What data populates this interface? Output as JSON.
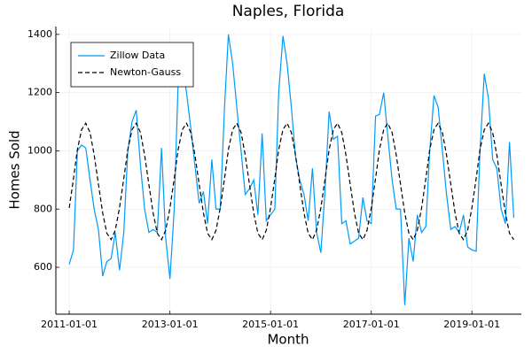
{
  "chart_data": {
    "type": "line",
    "title": "Naples, Florida",
    "x_label": "Month",
    "y_label": "Homes Sold",
    "x": [
      "2011-01-01",
      "2011-02-01",
      "2011-03-01",
      "2011-04-01",
      "2011-05-01",
      "2011-06-01",
      "2011-07-01",
      "2011-08-01",
      "2011-09-01",
      "2011-10-01",
      "2011-11-01",
      "2011-12-01",
      "2012-01-01",
      "2012-02-01",
      "2012-03-01",
      "2012-04-01",
      "2012-05-01",
      "2012-06-01",
      "2012-07-01",
      "2012-08-01",
      "2012-09-01",
      "2012-10-01",
      "2012-11-01",
      "2012-12-01",
      "2013-01-01",
      "2013-02-01",
      "2013-03-01",
      "2013-04-01",
      "2013-05-01",
      "2013-06-01",
      "2013-07-01",
      "2013-08-01",
      "2013-09-01",
      "2013-10-01",
      "2013-11-01",
      "2013-12-01",
      "2014-01-01",
      "2014-02-01",
      "2014-03-01",
      "2014-04-01",
      "2014-05-01",
      "2014-06-01",
      "2014-07-01",
      "2014-08-01",
      "2014-09-01",
      "2014-10-01",
      "2014-11-01",
      "2014-12-01",
      "2015-01-01",
      "2015-02-01",
      "2015-03-01",
      "2015-04-01",
      "2015-05-01",
      "2015-06-01",
      "2015-07-01",
      "2015-08-01",
      "2015-09-01",
      "2015-10-01",
      "2015-11-01",
      "2015-12-01",
      "2016-01-01",
      "2016-02-01",
      "2016-03-01",
      "2016-04-01",
      "2016-05-01",
      "2016-06-01",
      "2016-07-01",
      "2016-08-01",
      "2016-09-01",
      "2016-10-01",
      "2016-11-01",
      "2016-12-01",
      "2017-01-01",
      "2017-02-01",
      "2017-03-01",
      "2017-04-01",
      "2017-05-01",
      "2017-06-01",
      "2017-07-01",
      "2017-08-01",
      "2017-09-01",
      "2017-10-01",
      "2017-11-01",
      "2017-12-01",
      "2018-01-01",
      "2018-02-01",
      "2018-03-01",
      "2018-04-01",
      "2018-05-01",
      "2018-06-01",
      "2018-07-01",
      "2018-08-01",
      "2018-09-01",
      "2018-10-01",
      "2018-11-01",
      "2018-12-01",
      "2019-01-01",
      "2019-02-01",
      "2019-03-01",
      "2019-04-01",
      "2019-05-01",
      "2019-06-01",
      "2019-07-01",
      "2019-08-01",
      "2019-09-01",
      "2019-10-01",
      "2019-11-01"
    ],
    "series": [
      {
        "name": "Zillow Data",
        "color": "#009af9",
        "dash": false,
        "values": [
          610,
          660,
          1000,
          1020,
          1010,
          900,
          800,
          730,
          570,
          620,
          630,
          720,
          590,
          720,
          1000,
          1100,
          1140,
          950,
          800,
          720,
          730,
          720,
          1010,
          700,
          560,
          800,
          1230,
          1300,
          1200,
          1080,
          950,
          820,
          860,
          750,
          970,
          800,
          800,
          1150,
          1400,
          1300,
          1150,
          1000,
          850,
          870,
          900,
          780,
          1060,
          760,
          780,
          800,
          1200,
          1395,
          1300,
          1150,
          980,
          900,
          850,
          760,
          940,
          720,
          650,
          870,
          1135,
          1040,
          1050,
          750,
          760,
          680,
          690,
          700,
          840,
          760,
          750,
          1120,
          1125,
          1200,
          1050,
          900,
          800,
          800,
          470,
          700,
          620,
          780,
          720,
          740,
          1000,
          1190,
          1150,
          1000,
          850,
          730,
          740,
          720,
          780,
          670,
          660,
          655,
          1000,
          1265,
          1180,
          970,
          940,
          800,
          750,
          1030,
          770
        ]
      },
      {
        "name": "Newton-Gauss",
        "color": "#000000",
        "dash": true,
        "values": [
          804,
          905,
          1004,
          1073,
          1095,
          1063,
          986,
          885,
          786,
          717,
          695,
          727,
          804,
          905,
          1004,
          1073,
          1095,
          1063,
          986,
          885,
          786,
          717,
          695,
          727,
          804,
          905,
          1004,
          1073,
          1095,
          1063,
          986,
          885,
          786,
          717,
          695,
          727,
          804,
          905,
          1004,
          1073,
          1095,
          1063,
          986,
          885,
          786,
          717,
          695,
          727,
          804,
          905,
          1004,
          1073,
          1095,
          1063,
          986,
          885,
          786,
          717,
          695,
          727,
          804,
          905,
          1004,
          1073,
          1095,
          1063,
          986,
          885,
          786,
          717,
          695,
          727,
          804,
          905,
          1004,
          1073,
          1095,
          1063,
          986,
          885,
          786,
          717,
          695,
          727,
          804,
          905,
          1004,
          1073,
          1095,
          1063,
          986,
          885,
          786,
          717,
          695,
          727,
          804,
          905,
          1004,
          1073,
          1095,
          1063,
          986,
          885,
          786,
          717,
          695
        ]
      }
    ],
    "xlim": [
      "2010-09-26",
      "2019-12-26"
    ],
    "xticks": [
      "2011-01-01",
      "2013-01-01",
      "2015-01-01",
      "2017-01-01",
      "2019-01-01"
    ],
    "ylim": [
      439,
      1427
    ],
    "yticks": [
      600,
      800,
      1000,
      1200,
      1400
    ],
    "grid": true,
    "legend": "top-left"
  }
}
